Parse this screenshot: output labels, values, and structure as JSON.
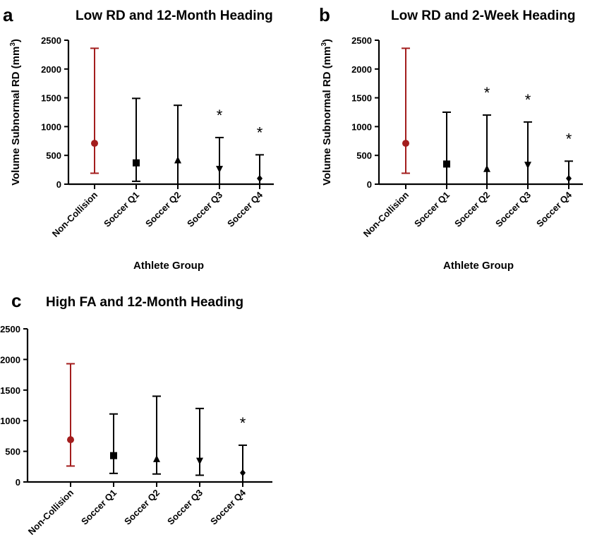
{
  "chart_data": [
    {
      "panel": "a",
      "type": "scatter",
      "title": "Low RD and 12-Month Heading",
      "ylabel": "Volume Subnormal RD (mm",
      "ylabel_sup": "3",
      "ylabel_close": ")",
      "xlabel": "Athlete Group",
      "ylim": [
        0,
        2500
      ],
      "yticks": [
        0,
        500,
        1000,
        1500,
        2000,
        2500
      ],
      "categories": [
        "Non-Collision",
        "Soccer Q1",
        "Soccer Q2",
        "Soccer Q3",
        "Soccer Q4"
      ],
      "markers": [
        "circle",
        "square",
        "triangle-up",
        "triangle-down",
        "diamond"
      ],
      "colors": [
        "#a31d1d",
        "#000000",
        "#000000",
        "#000000",
        "#000000"
      ],
      "median": [
        710,
        370,
        410,
        270,
        100
      ],
      "low": [
        190,
        50,
        0,
        0,
        0
      ],
      "high": [
        2360,
        1490,
        1370,
        810,
        510
      ],
      "significant": [
        "",
        "",
        "",
        "*",
        "*"
      ]
    },
    {
      "panel": "b",
      "type": "scatter",
      "title": "Low RD and 2-Week Heading",
      "ylabel": "Volume Subnormal RD (mm",
      "ylabel_sup": "3",
      "ylabel_close": ")",
      "xlabel": "Athlete Group",
      "ylim": [
        0,
        2500
      ],
      "yticks": [
        0,
        500,
        1000,
        1500,
        2000,
        2500
      ],
      "categories": [
        "Non-Collision",
        "Soccer Q1",
        "Soccer Q2",
        "Soccer Q3",
        "Soccer Q4"
      ],
      "markers": [
        "circle",
        "square",
        "triangle-up",
        "triangle-down",
        "diamond"
      ],
      "colors": [
        "#a31d1d",
        "#000000",
        "#000000",
        "#000000",
        "#000000"
      ],
      "median": [
        710,
        350,
        260,
        340,
        100
      ],
      "low": [
        190,
        0,
        0,
        0,
        0
      ],
      "high": [
        2360,
        1250,
        1200,
        1080,
        400
      ],
      "significant": [
        "",
        "",
        "*",
        "*",
        "*"
      ]
    },
    {
      "panel": "c",
      "type": "scatter",
      "title": "High FA and 12-Month  Heading",
      "ylabel": "",
      "ylabel_sup": "",
      "ylabel_close": "",
      "xlabel": "",
      "ylim": [
        0,
        2500
      ],
      "yticks": [
        0,
        500,
        1000,
        1500,
        2000,
        2500
      ],
      "categories": [
        "Non-Collision",
        "Soccer Q1",
        "Soccer Q2",
        "Soccer Q3",
        "Soccer Q4"
      ],
      "markers": [
        "circle",
        "square",
        "triangle-up",
        "triangle-down",
        "diamond"
      ],
      "colors": [
        "#a31d1d",
        "#000000",
        "#000000",
        "#000000",
        "#000000"
      ],
      "median": [
        690,
        430,
        370,
        350,
        150
      ],
      "low": [
        260,
        140,
        130,
        110,
        0
      ],
      "high": [
        1930,
        1110,
        1400,
        1200,
        600
      ],
      "significant": [
        "",
        "",
        "",
        "",
        "*"
      ]
    }
  ]
}
